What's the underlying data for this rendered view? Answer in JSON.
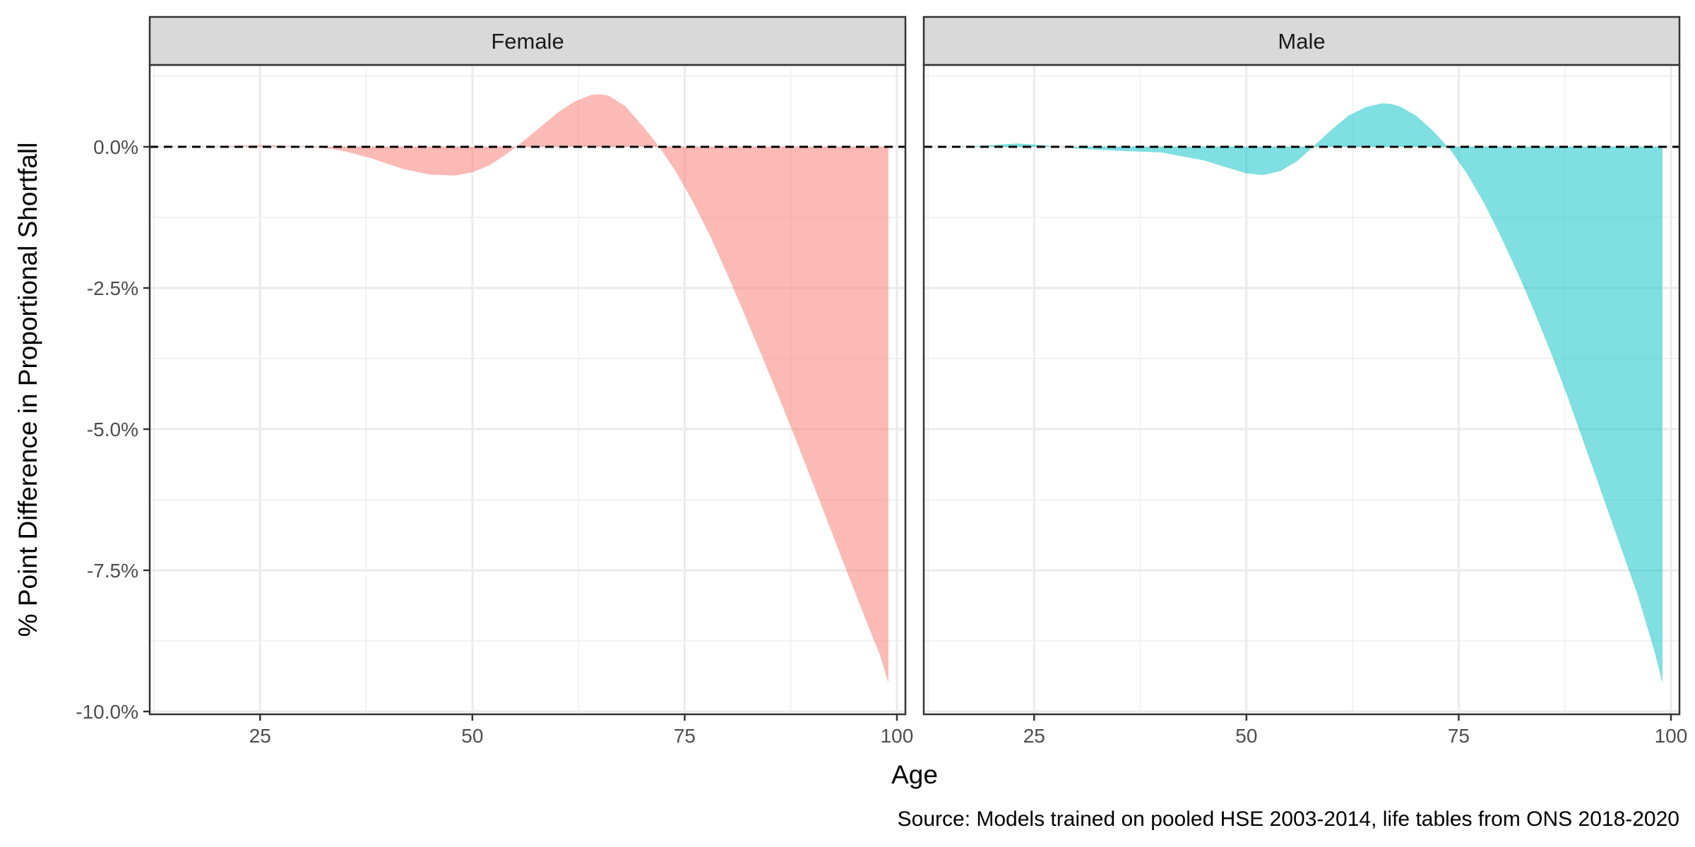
{
  "chart_data": {
    "type": "area",
    "xlabel": "Age",
    "ylabel": "% Point Difference in Proportional Shortfall",
    "caption": "Source: Models trained on pooled HSE 2003-2014, life tables from ONS 2018-2020",
    "xlim": [
      12,
      101
    ],
    "ylim": [
      -10.05,
      1.45
    ],
    "x_ticks": [
      25,
      50,
      75,
      100
    ],
    "x_tick_labels": [
      "25",
      "50",
      "75",
      "100"
    ],
    "y_ticks": [
      0,
      -2.5,
      -5,
      -7.5,
      -10
    ],
    "y_tick_labels": [
      "0.0%",
      "-2.5%",
      "-5.0%",
      "-7.5%",
      "-10.0%"
    ],
    "reference_line": {
      "y": 0,
      "style": "dashed"
    },
    "grid": true,
    "legend": "none",
    "panels": [
      {
        "name": "Female",
        "color": "#F8766D",
        "x": [
          16,
          20,
          25,
          30,
          33,
          35,
          38,
          40,
          42,
          45,
          48,
          50,
          52,
          54,
          56,
          58,
          60,
          62,
          64,
          65,
          66,
          68,
          70,
          72,
          74,
          76,
          78,
          80,
          82,
          84,
          86,
          88,
          90,
          92,
          94,
          96,
          98,
          99
        ],
        "y": [
          0,
          0.01,
          0.03,
          0.01,
          -0.03,
          -0.08,
          -0.2,
          -0.3,
          -0.4,
          -0.49,
          -0.51,
          -0.45,
          -0.33,
          -0.13,
          0.1,
          0.35,
          0.6,
          0.8,
          0.92,
          0.93,
          0.91,
          0.72,
          0.38,
          0.0,
          -0.45,
          -0.98,
          -1.58,
          -2.25,
          -2.95,
          -3.67,
          -4.4,
          -5.15,
          -5.92,
          -6.7,
          -7.48,
          -8.25,
          -9.0,
          -9.5
        ]
      },
      {
        "name": "Male",
        "color": "#00BFC4",
        "x": [
          16,
          20,
          23,
          26,
          30,
          35,
          40,
          45,
          48,
          50,
          52,
          54,
          56,
          58,
          60,
          62,
          64,
          66,
          67,
          68,
          70,
          72,
          74,
          76,
          78,
          80,
          82,
          84,
          86,
          88,
          90,
          92,
          94,
          96,
          98,
          99
        ],
        "y": [
          0,
          0.03,
          0.06,
          0.03,
          -0.03,
          -0.07,
          -0.1,
          -0.24,
          -0.38,
          -0.47,
          -0.5,
          -0.43,
          -0.25,
          0.02,
          0.3,
          0.55,
          0.7,
          0.77,
          0.76,
          0.72,
          0.55,
          0.28,
          -0.05,
          -0.48,
          -1.0,
          -1.6,
          -2.25,
          -2.95,
          -3.7,
          -4.5,
          -5.35,
          -6.2,
          -7.05,
          -7.9,
          -8.9,
          -9.5
        ]
      }
    ]
  }
}
